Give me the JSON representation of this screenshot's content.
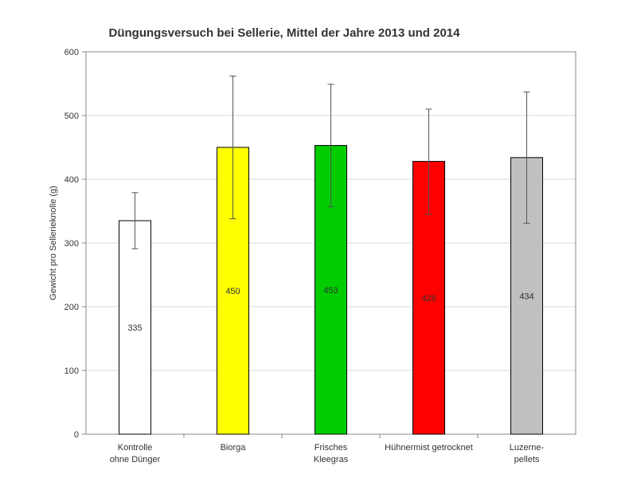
{
  "chart_data": {
    "type": "bar",
    "title": "Düngungsversuch  bei Sellerie, Mittel der Jahre 2013 und 2014",
    "xlabel": "",
    "ylabel": "Gewicht pro Sellerieknolle (g)",
    "ylim": [
      0,
      600
    ],
    "yticks": [
      0,
      100,
      200,
      300,
      400,
      500,
      600
    ],
    "grid": true,
    "categories": [
      [
        "Kontrolle",
        "ohne Dünger"
      ],
      [
        "Biorga"
      ],
      [
        "Frisches",
        "Kleegras"
      ],
      [
        "Hühnermist getrocknet"
      ],
      [
        "Luzerne-",
        "pellets"
      ]
    ],
    "values": [
      335,
      450,
      453,
      428,
      434
    ],
    "data_labels": [
      "335",
      "450",
      "453",
      "428",
      "434"
    ],
    "error_bars": [
      {
        "low": 291,
        "high": 379
      },
      {
        "low": 338,
        "high": 562
      },
      {
        "low": 357,
        "high": 549
      },
      {
        "low": 345,
        "high": 510
      },
      {
        "low": 331,
        "high": 537
      }
    ],
    "colors": [
      "#ffffff",
      "#ffff00",
      "#00cc00",
      "#ff0000",
      "#c0c0c0"
    ]
  }
}
